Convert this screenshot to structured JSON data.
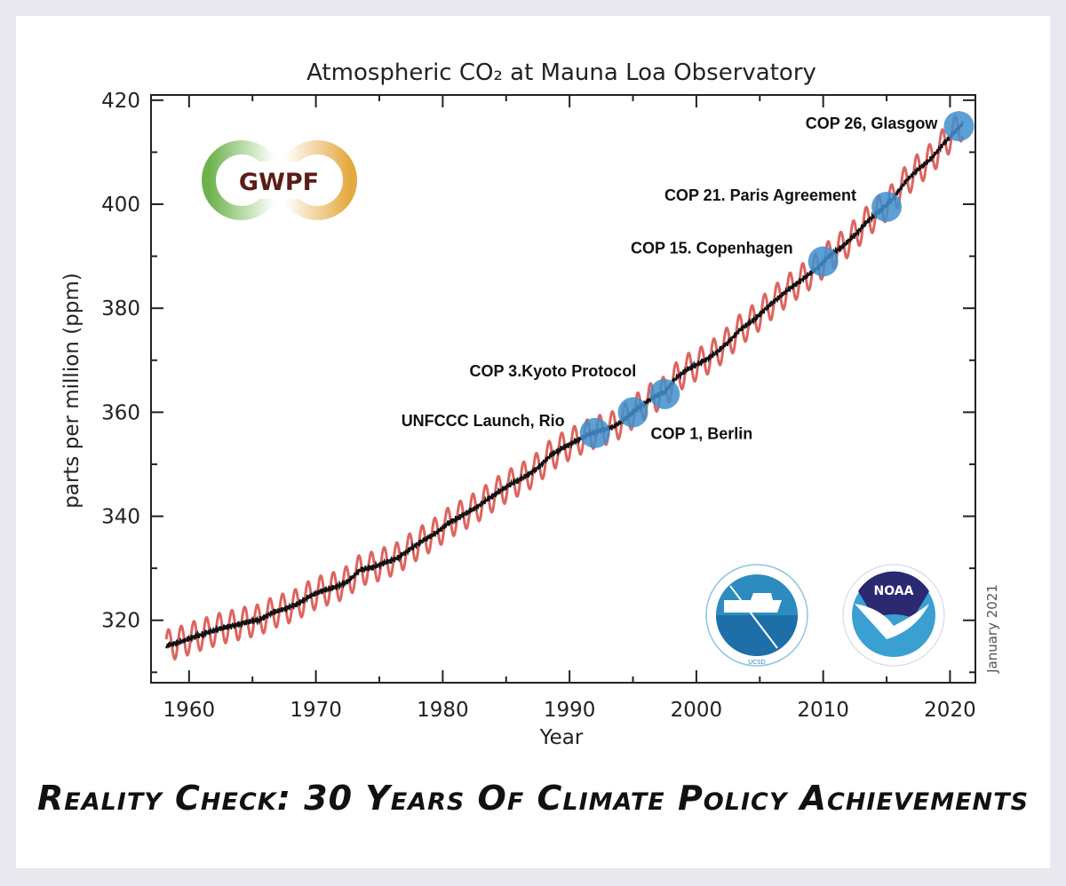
{
  "chart_data": {
    "type": "line",
    "title": "Atmospheric CO₂ at Mauna Loa Observatory",
    "xlabel": "Year",
    "ylabel": "parts per million (ppm)",
    "xlim": [
      1957,
      2022
    ],
    "ylim": [
      308,
      421
    ],
    "xticks": [
      "1960",
      "1970",
      "1980",
      "1990",
      "2000",
      "2010",
      "2020"
    ],
    "yticks": [
      "320",
      "340",
      "360",
      "380",
      "400",
      "420"
    ],
    "grid": false,
    "seasonal_amplitude_ppm": 3,
    "series": [
      {
        "color": "#d9534f",
        "style": "monthly with seasonal cycle"
      },
      {
        "color": "#111111",
        "style": "seasonally corrected trend"
      }
    ],
    "annual_mean": {
      "x": [
        1958,
        1959,
        1960,
        1961,
        1962,
        1963,
        1964,
        1965,
        1966,
        1967,
        1968,
        1969,
        1970,
        1971,
        1972,
        1973,
        1974,
        1975,
        1976,
        1977,
        1978,
        1979,
        1980,
        1981,
        1982,
        1983,
        1984,
        1985,
        1986,
        1987,
        1988,
        1989,
        1990,
        1991,
        1992,
        1993,
        1994,
        1995,
        1996,
        1997,
        1998,
        1999,
        2000,
        2001,
        2002,
        2003,
        2004,
        2005,
        2006,
        2007,
        2008,
        2009,
        2010,
        2011,
        2012,
        2013,
        2014,
        2015,
        2016,
        2017,
        2018,
        2019,
        2020
      ],
      "y": [
        315.3,
        315.98,
        316.91,
        317.64,
        318.45,
        318.99,
        319.62,
        320.04,
        321.37,
        322.18,
        323.05,
        324.62,
        325.68,
        326.32,
        327.46,
        329.68,
        330.19,
        331.12,
        332.03,
        333.84,
        335.41,
        336.84,
        338.76,
        340.12,
        341.48,
        343.15,
        344.87,
        346.35,
        347.61,
        349.31,
        351.69,
        353.2,
        354.45,
        355.7,
        356.54,
        357.21,
        358.96,
        360.97,
        362.74,
        363.88,
        366.84,
        368.54,
        369.71,
        371.32,
        373.45,
        375.98,
        377.7,
        379.98,
        382.09,
        384.02,
        385.83,
        387.64,
        390.1,
        391.85,
        394.06,
        396.74,
        398.81,
        401.01,
        404.41,
        406.76,
        408.72,
        411.66,
        414.24
      ]
    },
    "annotations": [
      {
        "label": "UNFCCC Launch, Rio",
        "x": 1992,
        "y": 356
      },
      {
        "label": "COP 1, Berlin",
        "x": 1995,
        "y": 360
      },
      {
        "label": "COP 3.Kyoto Protocol",
        "x": 1997.5,
        "y": 363.5
      },
      {
        "label": "COP 15. Copenhagen",
        "x": 2010,
        "y": 389
      },
      {
        "label": "COP 21. Paris Agreement",
        "x": 2015,
        "y": 399.5
      },
      {
        "label": "COP 26, Glasgow",
        "x": 2020.7,
        "y": 415
      }
    ],
    "marker_color": "#3f8fce",
    "date_note": "January 2021"
  },
  "logos": {
    "gwpf": "GWPF",
    "noaa": "NOAA",
    "scripps": "UCSD"
  },
  "caption": "Reality Check: 30 Years Of Climate Policy Achievements"
}
